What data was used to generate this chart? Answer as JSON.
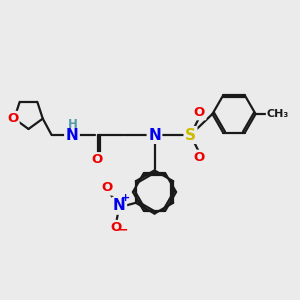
{
  "background_color": "#ebebeb",
  "bond_color": "#1a1a1a",
  "atom_colors": {
    "N": "#0000ee",
    "O": "#ee0000",
    "S": "#ccbb00",
    "H": "#5599aa",
    "C": "#1a1a1a"
  }
}
